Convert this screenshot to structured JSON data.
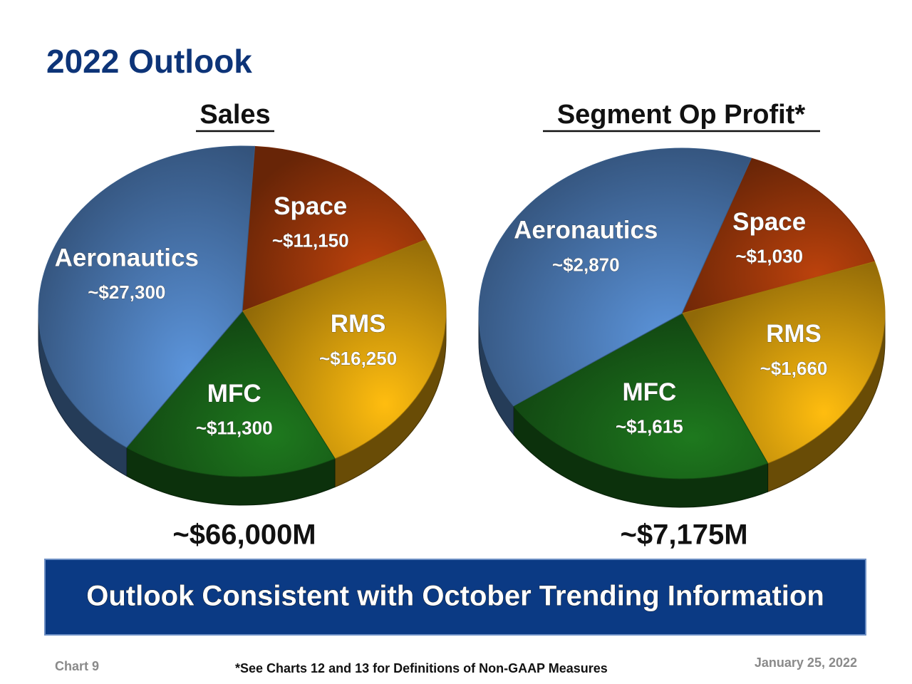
{
  "title": "2022 Outlook",
  "chart_data": [
    {
      "type": "pie",
      "title": "Sales",
      "categories": [
        "Space",
        "RMS",
        "MFC",
        "Aeronautics"
      ],
      "values": [
        11150,
        16250,
        11300,
        27300
      ],
      "value_labels": [
        "~$11,150",
        "~$16,250",
        "~$11,300",
        "~$27,300"
      ],
      "colors": [
        "#a83b0b",
        "#e9a90d",
        "#1b6c1b",
        "#5285c4"
      ],
      "total_label": "~$66,000M"
    },
    {
      "type": "pie",
      "title": "Segment Op Profit*",
      "categories": [
        "Space",
        "RMS",
        "MFC",
        "Aeronautics"
      ],
      "values": [
        1030,
        1660,
        1615,
        2870
      ],
      "value_labels": [
        "~$1,030",
        "~$1,660",
        "~$1,615",
        "~$2,870"
      ],
      "colors": [
        "#a83b0b",
        "#e9a90d",
        "#1b6c1b",
        "#5285c4"
      ],
      "total_label": "~$7,175M"
    }
  ],
  "banner": "Outlook Consistent with October Trending Information",
  "footer": {
    "chart_number": "Chart 9",
    "note": "*See Charts 12 and 13 for Definitions of Non-GAAP Measures",
    "date": "January 25, 2022"
  }
}
